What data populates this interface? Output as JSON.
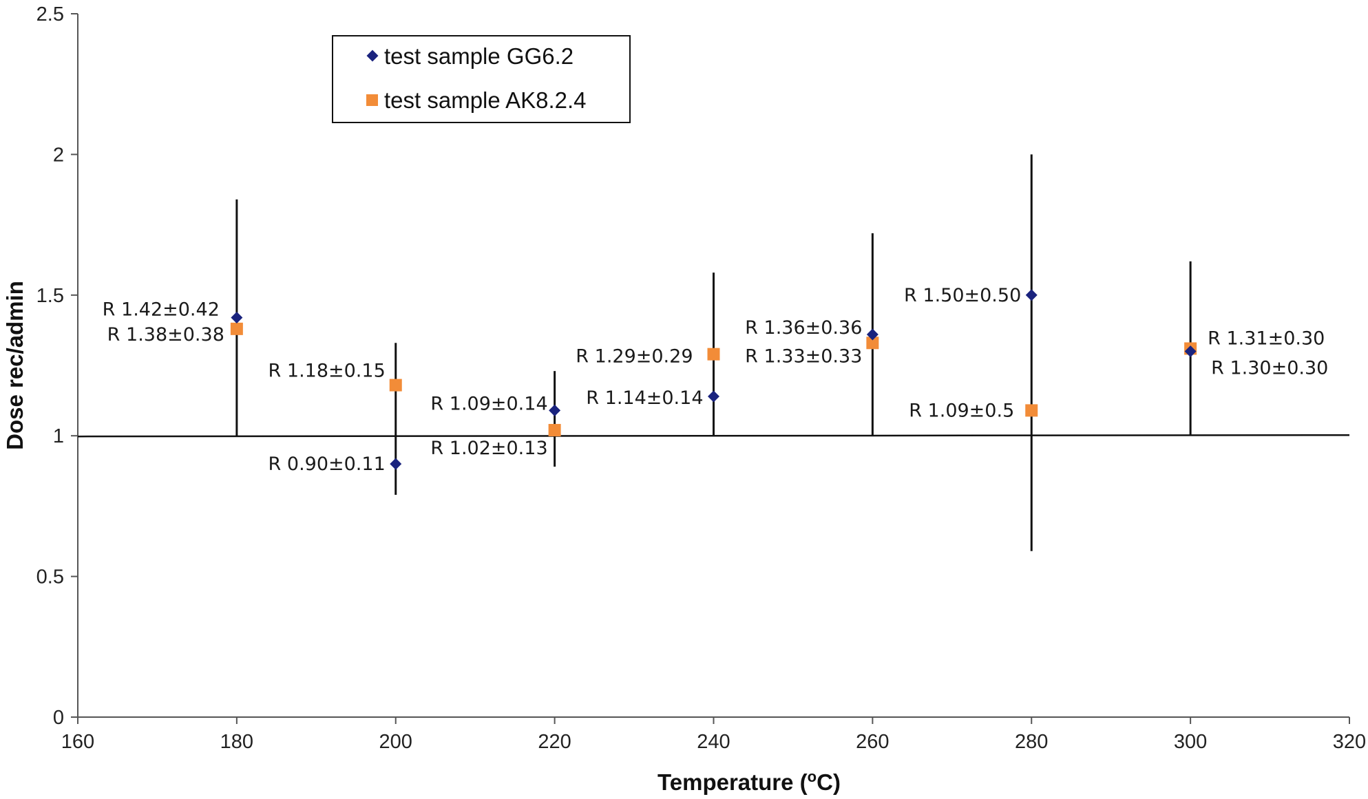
{
  "chart_data": {
    "type": "scatter",
    "title": "",
    "xlabel_prefix": "Temperature (",
    "xlabel_sup": "o",
    "xlabel_suffix": "C)",
    "ylabel": "Dose rec/admin",
    "xlim": [
      160,
      320
    ],
    "ylim": [
      0,
      2.5
    ],
    "xticks": [
      160,
      180,
      200,
      220,
      240,
      260,
      280,
      300,
      320
    ],
    "yticks": [
      0,
      0.5,
      1,
      1.5,
      2,
      2.5
    ],
    "ytick_labels": [
      "0",
      "0.5",
      "1",
      "1.5",
      "2",
      "2.5"
    ],
    "reference_line_y": 1,
    "legend_position": "top-left",
    "series": [
      {
        "name": "test sample GG6.2",
        "marker": "diamond",
        "color": "#1a237e",
        "points": [
          {
            "x": 180,
            "y": 1.42,
            "label": "R 1.42±0.42"
          },
          {
            "x": 200,
            "y": 0.9,
            "label": "R 0.90±0.11"
          },
          {
            "x": 220,
            "y": 1.09,
            "label": "R 1.09±0.14"
          },
          {
            "x": 240,
            "y": 1.14,
            "label": "R 1.14±0.14"
          },
          {
            "x": 260,
            "y": 1.36,
            "label": "R 1.36±0.36"
          },
          {
            "x": 280,
            "y": 1.5,
            "label": "R 1.50±0.50"
          },
          {
            "x": 300,
            "y": 1.3,
            "label": "R 1.30±0.30"
          }
        ]
      },
      {
        "name": "test sample AK8.2.4",
        "marker": "square",
        "color": "#f28c38",
        "points": [
          {
            "x": 180,
            "y": 1.38,
            "label": "R 1.38±0.38"
          },
          {
            "x": 200,
            "y": 1.18,
            "label": "R 1.18±0.15"
          },
          {
            "x": 220,
            "y": 1.02,
            "label": "R 1.02±0.13"
          },
          {
            "x": 240,
            "y": 1.29,
            "label": "R 1.29±0.29"
          },
          {
            "x": 260,
            "y": 1.33,
            "label": "R 1.33±0.33"
          },
          {
            "x": 280,
            "y": 1.09,
            "label": "R 1.09±0.5"
          },
          {
            "x": 300,
            "y": 1.31,
            "label": "R 1.31±0.30"
          }
        ]
      }
    ],
    "error_bars": [
      {
        "x": 180,
        "low": 1.0,
        "high": 1.84
      },
      {
        "x": 200,
        "low": 0.79,
        "high": 1.33
      },
      {
        "x": 220,
        "low": 0.89,
        "high": 1.23
      },
      {
        "x": 240,
        "low": 1.0,
        "high": 1.58
      },
      {
        "x": 260,
        "low": 1.0,
        "high": 1.72
      },
      {
        "x": 280,
        "low": 0.59,
        "high": 2.0
      },
      {
        "x": 300,
        "low": 1.0,
        "high": 1.62
      }
    ]
  }
}
